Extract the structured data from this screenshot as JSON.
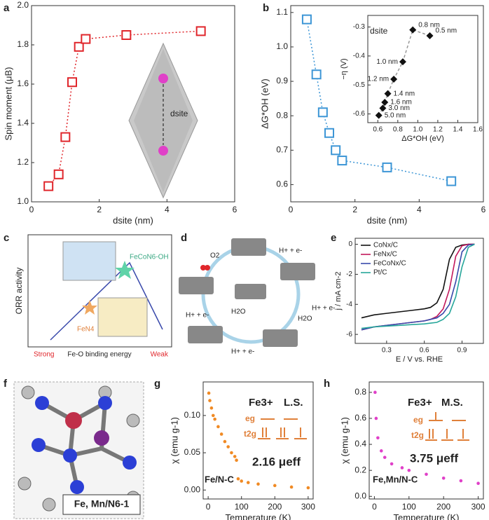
{
  "chart_data": [
    {
      "type": "scatter",
      "label": "a",
      "x_label": "dsite (nm)",
      "y_label": "Spin moment (μB)",
      "x": [
        0.5,
        0.8,
        1.0,
        1.2,
        1.4,
        1.6,
        2.8,
        5.0
      ],
      "series": [
        {
          "color": "#e0262b",
          "marker": "square-open",
          "line": "dotted",
          "values": [
            1.08,
            1.14,
            1.33,
            1.61,
            1.79,
            1.83,
            1.85,
            1.87
          ]
        }
      ],
      "xlim": [
        0,
        6
      ],
      "xticks": [
        0,
        2,
        4,
        6
      ],
      "ylim": [
        1.0,
        2.0
      ],
      "yticks": [
        {
          "value": 1,
          "label": "1.0"
        },
        1.2,
        1.4,
        1.6,
        1.8,
        {
          "value": 2,
          "label": "2.0"
        }
      ],
      "annotation": "dsite"
    },
    {
      "type": "scatter",
      "label": "b",
      "x_label": "dsite (nm)",
      "y_label": "ΔG*OH (eV)",
      "x": [
        0.5,
        0.8,
        1.0,
        1.2,
        1.4,
        1.6,
        3.0,
        5.0
      ],
      "series": [
        {
          "color": "#3d96d6",
          "marker": "square-open",
          "line": "dotted",
          "values": [
            1.08,
            0.92,
            0.81,
            0.75,
            0.7,
            0.67,
            0.65,
            0.61
          ]
        }
      ],
      "xlim": [
        0,
        6
      ],
      "xticks": [
        0,
        2,
        4,
        6
      ],
      "ylim": [
        0.55,
        1.12
      ],
      "yticks": [
        0.6,
        0.7,
        0.8,
        0.9,
        {
          "value": 1,
          "label": "1.0"
        },
        1.1
      ],
      "inset": {
        "type": "scatter",
        "x_label": "ΔG*OH (eV)",
        "y_label": "−η (V)",
        "annotation": "dsite",
        "x": [
          1.12,
          0.95,
          0.85,
          0.76,
          0.7,
          0.67,
          0.65,
          0.61
        ],
        "series": [
          {
            "color": "#111111",
            "marker": "diamond",
            "line": "dashed",
            "values": [
              -0.33,
              -0.31,
              -0.42,
              -0.48,
              -0.53,
              -0.56,
              -0.58,
              -0.605
            ]
          }
        ],
        "point_labels": [
          "0.5 nm",
          "0.8 nm",
          "1.0 nm",
          "1.2 nm",
          "1.4 nm",
          "1.6 nm",
          "3.0 nm",
          "5.0 nm"
        ],
        "xlim": [
          0.5,
          1.6
        ],
        "xticks": [
          0.6,
          0.8,
          {
            "value": 1,
            "label": "1.0"
          },
          1.2,
          1.4,
          1.6
        ],
        "ylim": [
          -0.63,
          -0.26
        ],
        "yticks": [
          -0.3,
          -0.4,
          -0.5,
          -0.6
        ]
      }
    },
    {
      "type": "line",
      "label": "e",
      "x_label": "E / V vs. RHE",
      "y_label": "j / mA cm-2",
      "legend": "top-left",
      "x": [
        0.1,
        0.2,
        0.3,
        0.4,
        0.5,
        0.6,
        0.65,
        0.7,
        0.75,
        0.8,
        0.85,
        0.9,
        0.95,
        1.0
      ],
      "series": [
        {
          "name": "CoNx/C",
          "color": "#111111",
          "values": [
            -4.9,
            -4.7,
            -4.6,
            -4.5,
            -4.4,
            -4.3,
            -4.2,
            -3.9,
            -3.0,
            -1.0,
            -0.2,
            -0.05,
            0,
            0
          ]
        },
        {
          "name": "FeNx/C",
          "color": "#c2185b",
          "values": [
            -5.7,
            -5.5,
            -5.4,
            -5.3,
            -5.2,
            -5.1,
            -5.0,
            -4.8,
            -4.3,
            -3.0,
            -0.8,
            -0.1,
            0,
            0
          ]
        },
        {
          "name": "FeCoNx/C",
          "color": "#3949ab",
          "values": [
            -5.7,
            -5.5,
            -5.4,
            -5.3,
            -5.2,
            -5.1,
            -5.0,
            -4.9,
            -4.6,
            -4.0,
            -2.5,
            -0.5,
            -0.05,
            0
          ]
        },
        {
          "name": "Pt/C",
          "color": "#26a69a",
          "values": [
            -5.6,
            -5.5,
            -5.45,
            -5.4,
            -5.35,
            -5.3,
            -5.25,
            -5.2,
            -5.0,
            -4.6,
            -3.5,
            -1.5,
            -0.2,
            0
          ]
        }
      ],
      "xlim": [
        0.05,
        1.07
      ],
      "xticks": [
        0.3,
        0.6,
        0.9
      ],
      "ylim": [
        -6.6,
        0.4
      ],
      "yticks": [
        0,
        -2,
        -4,
        -6
      ]
    },
    {
      "type": "scatter",
      "label": "g",
      "x_label": "Temperature (K)",
      "y_label": "χ (emu g-1)",
      "x": [
        2,
        5,
        10,
        15,
        20,
        30,
        40,
        50,
        60,
        70,
        80,
        85,
        90,
        100,
        120,
        150,
        200,
        250,
        300
      ],
      "series": [
        {
          "color": "#f08a24",
          "marker": "dot",
          "values": [
            0.13,
            0.12,
            0.11,
            0.1,
            0.095,
            0.085,
            0.075,
            0.065,
            0.058,
            0.05,
            0.045,
            0.04,
            0.015,
            0.012,
            0.01,
            0.008,
            0.006,
            0.004,
            0.003
          ]
        }
      ],
      "xlim": [
        -15,
        315
      ],
      "xticks": [
        0,
        100,
        200,
        300
      ],
      "ylim": [
        -0.012,
        0.145
      ],
      "yticks": [
        {
          "value": 0,
          "label": "0.00"
        },
        {
          "value": 0.05,
          "label": "0.05"
        },
        {
          "value": 0.1,
          "label": "0.10"
        }
      ],
      "annotations": {
        "ion": "Fe3+",
        "spin": "L.S.",
        "eg": "eg",
        "t2g": "t2g",
        "moment": "2.16 μeff",
        "sample": "Fe/N-C"
      }
    },
    {
      "type": "scatter",
      "label": "h",
      "x_label": "Temperature (K)",
      "y_label": "χ (emu g-1)",
      "x": [
        2,
        5,
        10,
        20,
        30,
        50,
        80,
        100,
        150,
        200,
        250,
        300
      ],
      "series": [
        {
          "color": "#e040c8",
          "marker": "dot",
          "values": [
            0.8,
            0.6,
            0.45,
            0.35,
            0.3,
            0.25,
            0.22,
            0.2,
            0.17,
            0.14,
            0.12,
            0.1
          ]
        }
      ],
      "xlim": [
        -15,
        315
      ],
      "xticks": [
        0,
        100,
        200,
        300
      ],
      "ylim": [
        -0.02,
        0.88
      ],
      "yticks": [
        {
          "value": 0,
          "label": "0.0"
        },
        0.2,
        0.4,
        0.6,
        0.8
      ],
      "annotations": {
        "ion": "Fe3+",
        "spin": "M.S.",
        "eg": "eg",
        "t2g": "t2g",
        "moment": "3.75 μeff",
        "sample": "Fe,Mn/N-C"
      }
    }
  ],
  "diagrams": {
    "c": {
      "label": "c",
      "y_label": "ORR activity",
      "strong": "Strong",
      "axis": "Fe-O binding energy",
      "weak": "Weak",
      "top": "FeCoN6-OH",
      "bottom": "FeN4"
    },
    "d": {
      "label": "d",
      "o2": "O2",
      "step1": "H+ + e-",
      "step2": "H+ + e-",
      "step3": "H+ + e-",
      "step4": "H+ + e-",
      "water1": "H2O",
      "water2": "H2O"
    },
    "f": {
      "label": "f",
      "caption": "Fe, Mn/N6-1"
    }
  }
}
